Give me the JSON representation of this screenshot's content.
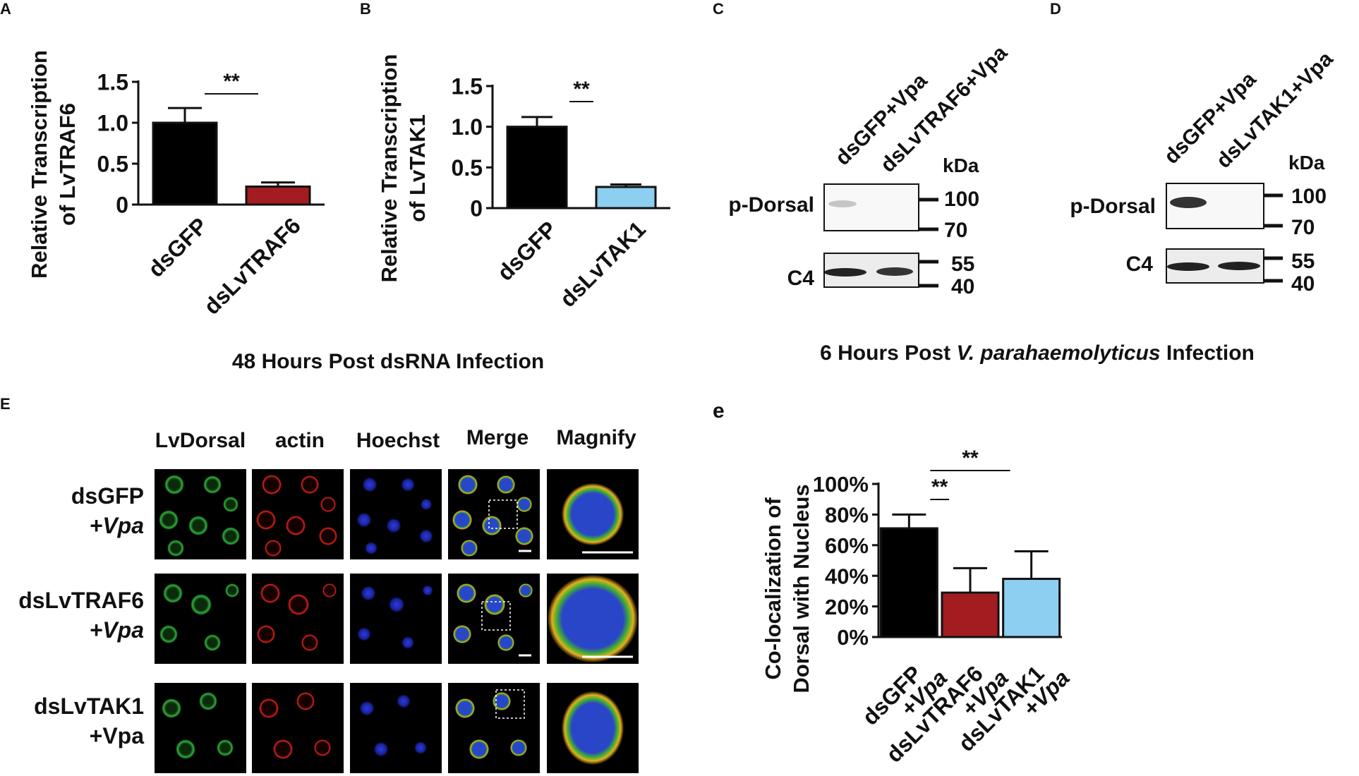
{
  "panels": {
    "A": "A",
    "B": "B",
    "C": "C",
    "D": "D",
    "E": "E",
    "e": "e"
  },
  "captions": {
    "dsrna": "48 Hours Post dsRNA Infection",
    "vpa_prefix": "6 Hours Post ",
    "vpa_species": "V. parahaemolyticus",
    "vpa_suffix": " Infection"
  },
  "colors": {
    "black": "#000000",
    "red": "#a31d20",
    "blue": "#8ccff0"
  },
  "chart_data": [
    {
      "type": "bar",
      "panel": "A",
      "categories": [
        "dsGFP",
        "dsLvTRAF6"
      ],
      "values": [
        1.0,
        0.22
      ],
      "errors": [
        0.18,
        0.05
      ],
      "colors": [
        "#000000",
        "#a31d20"
      ],
      "ylabel": [
        "Relative Transcription",
        "of LvTRAF6"
      ],
      "ylim": [
        0,
        1.5
      ],
      "yticks": [
        "0",
        "0.5",
        "1.0",
        "1.5"
      ],
      "significance": [
        {
          "from": 0,
          "to": 1,
          "label": "**"
        }
      ]
    },
    {
      "type": "bar",
      "panel": "B",
      "categories": [
        "dsGFP",
        "dsLvTAK1"
      ],
      "values": [
        1.0,
        0.26
      ],
      "errors": [
        0.12,
        0.03
      ],
      "colors": [
        "#000000",
        "#8ccff0"
      ],
      "ylabel": [
        "Relative Transcription",
        "of LvTAK1"
      ],
      "ylim": [
        0,
        1.5
      ],
      "yticks": [
        "0",
        "0.5",
        "1.0",
        "1.5"
      ],
      "significance": [
        {
          "from": 0,
          "to": 1,
          "label": "**"
        }
      ]
    },
    {
      "type": "bar",
      "panel": "e",
      "categories": [
        [
          "dsGFP",
          "+Vpa"
        ],
        [
          "dsLvTRAF6",
          "+Vpa"
        ],
        [
          "dsLvTAK1",
          "+Vpa"
        ]
      ],
      "values": [
        71,
        29,
        38
      ],
      "errors": [
        9,
        16,
        18
      ],
      "colors": [
        "#000000",
        "#a31d20",
        "#8ccff0"
      ],
      "ylabel": [
        "Co-localization of",
        "Dorsal with Nucleus"
      ],
      "ylim": [
        0,
        100
      ],
      "yticks": [
        "0%",
        "20%",
        "40%",
        "60%",
        "80%",
        "100%"
      ],
      "significance": [
        {
          "from": 0,
          "to": 1,
          "label": "**"
        },
        {
          "from": 0,
          "to": 2,
          "label": "**"
        }
      ]
    }
  ],
  "blot_C": {
    "lanes": [
      "dsGFP+Vpa",
      "dsLvTRAF6+Vpa"
    ],
    "kda": "kDa",
    "rows": [
      {
        "label": "p-Dorsal",
        "markers": [
          "100",
          "70"
        ]
      },
      {
        "label": "C4",
        "markers": [
          "55",
          "40"
        ]
      }
    ]
  },
  "blot_D": {
    "lanes": [
      "dsGFP+Vpa",
      "dsLvTAK1+Vpa"
    ],
    "kda": "kDa",
    "rows": [
      {
        "label": "p-Dorsal",
        "markers": [
          "100",
          "70"
        ]
      },
      {
        "label": "C4",
        "markers": [
          "55",
          "40"
        ]
      }
    ]
  },
  "micrograph": {
    "columns": [
      "LvDorsal",
      "actin",
      "Hoechst",
      "Merge",
      "Magnify"
    ],
    "rows": [
      {
        "line1": "dsGFP",
        "line2": "+Vpa"
      },
      {
        "line1": "dsLvTRAF6",
        "line2": "+Vpa"
      },
      {
        "line1": "dsLvTAK1",
        "line2": "+Vpa"
      }
    ]
  }
}
